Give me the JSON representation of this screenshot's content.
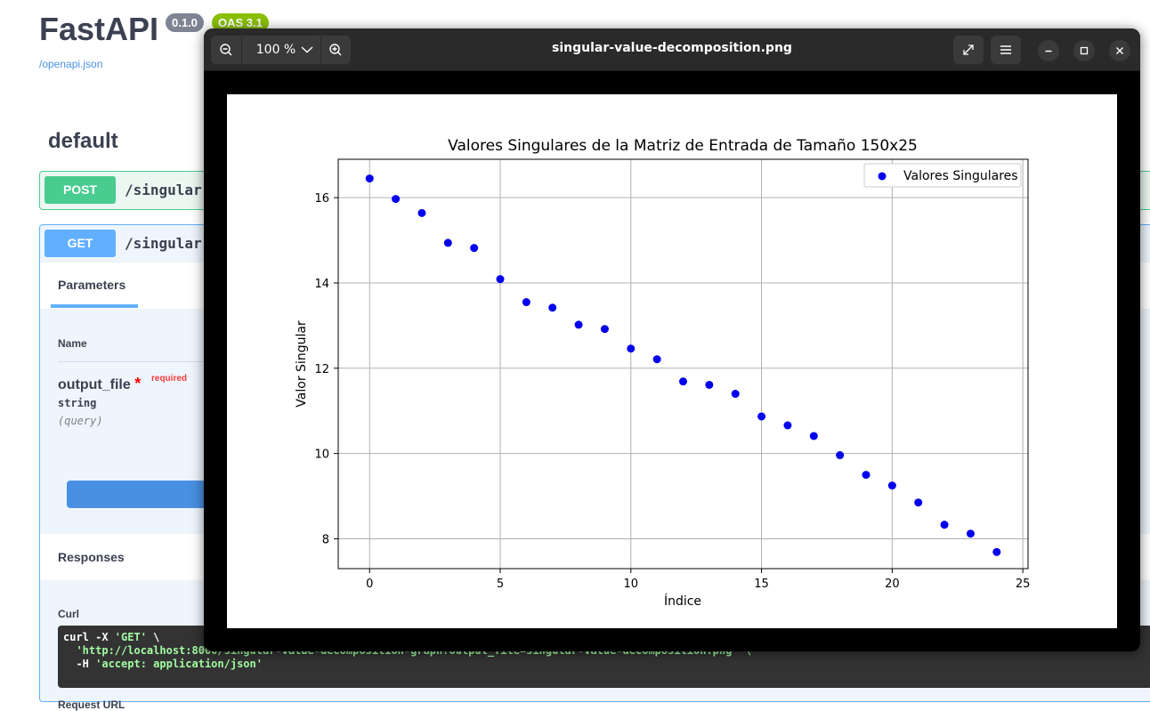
{
  "swagger": {
    "app_title": "FastAPI",
    "version_badge": "0.1.0",
    "oas_badge": "OAS 3.1",
    "openapi_link": "/openapi.json",
    "tag": "default",
    "post_op": {
      "method": "POST",
      "path": "/singular"
    },
    "get_op": {
      "method": "GET",
      "path": "/singular",
      "parameters_tab": "Parameters",
      "name_header": "Name",
      "param": {
        "name": "output_file",
        "star": "*",
        "required": "required",
        "type": "string",
        "in": "(query)"
      },
      "responses_title": "Responses",
      "curl_label": "Curl",
      "curl_line1_cmd": "curl -X ",
      "curl_line1_method": "'GET'",
      "curl_line1_tail": " \\",
      "curl_line2": "  'http://localhost:8000/singular-value-decomposition-graph?output_file=singular-value-decomposition.png' \\",
      "curl_line3_flag": "  -H ",
      "curl_line3_val": "'accept: application/json'",
      "request_url_label": "Request URL"
    }
  },
  "viewer": {
    "title": "singular-value-decomposition.png",
    "zoom_label": "100 %",
    "icons": {
      "zoom_out": "zoom-out-icon",
      "zoom_in": "zoom-in-icon",
      "fullscreen": "fullscreen-icon",
      "menu": "hamburger-menu-icon",
      "minimize": "minimize-icon",
      "maximize": "maximize-icon",
      "close": "close-icon"
    }
  },
  "colors": {
    "post": "#49cc90",
    "get": "#61affe",
    "viewer_header": "#2a2a2a",
    "point": "#0000ee"
  },
  "chart_data": {
    "type": "scatter",
    "title": "Valores Singulares de la Matriz de Entrada de Tamaño 150x25",
    "xlabel": "Índice",
    "ylabel": "Valor Singular",
    "xlim": [
      -1.2,
      25.2
    ],
    "ylim": [
      7.3,
      16.9
    ],
    "xticks": [
      0,
      5,
      10,
      15,
      20,
      25
    ],
    "yticks": [
      8,
      10,
      12,
      14,
      16
    ],
    "grid": true,
    "legend_position": "top-right",
    "series": [
      {
        "name": "Valores Singulares",
        "color": "#0000ee",
        "x": [
          0,
          1,
          2,
          3,
          4,
          5,
          6,
          7,
          8,
          9,
          10,
          11,
          12,
          13,
          14,
          15,
          16,
          17,
          18,
          19,
          20,
          21,
          22,
          23,
          24
        ],
        "y": [
          16.45,
          15.97,
          15.64,
          14.94,
          14.82,
          14.09,
          13.55,
          13.42,
          13.02,
          12.92,
          12.46,
          12.21,
          11.69,
          11.61,
          11.4,
          10.87,
          10.66,
          10.41,
          9.96,
          9.5,
          9.25,
          8.85,
          8.33,
          8.12,
          7.69
        ]
      }
    ]
  }
}
